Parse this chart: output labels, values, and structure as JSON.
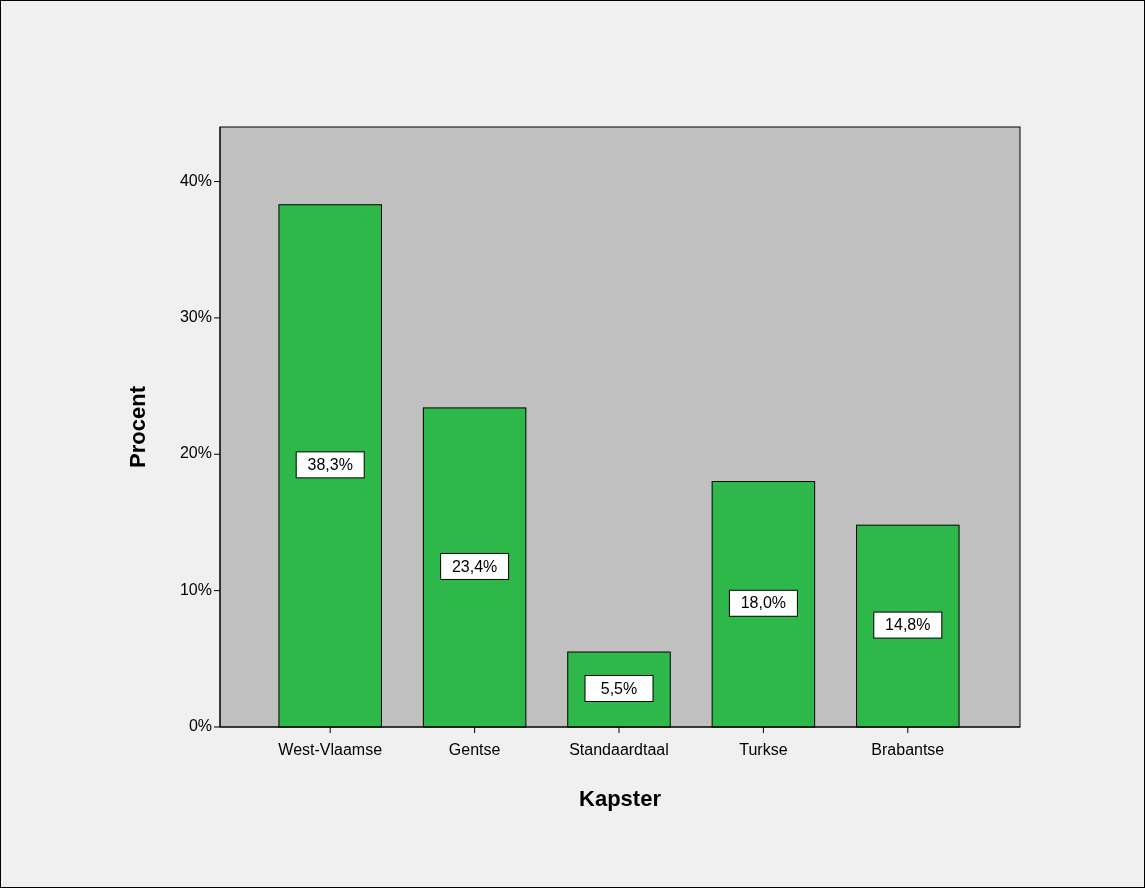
{
  "chart_data": {
    "type": "bar",
    "categories": [
      "West-Vlaamse",
      "Gentse",
      "Standaardtaal",
      "Turkse",
      "Brabantse"
    ],
    "values": [
      38.3,
      23.4,
      5.5,
      18.0,
      14.8
    ],
    "value_labels": [
      "38,3%",
      "23,4%",
      "5,5%",
      "18,0%",
      "14,8%"
    ],
    "color": "#2fb84a",
    "xlabel": "Kapster",
    "ylabel": "Procent",
    "ylim": [
      0,
      44
    ],
    "yticks": [
      {
        "value": 0,
        "label": "0%"
      },
      {
        "value": 10,
        "label": "10%"
      },
      {
        "value": 20,
        "label": "20%"
      },
      {
        "value": 30,
        "label": "30%"
      },
      {
        "value": 40,
        "label": "40%"
      }
    ],
    "grid": false
  }
}
